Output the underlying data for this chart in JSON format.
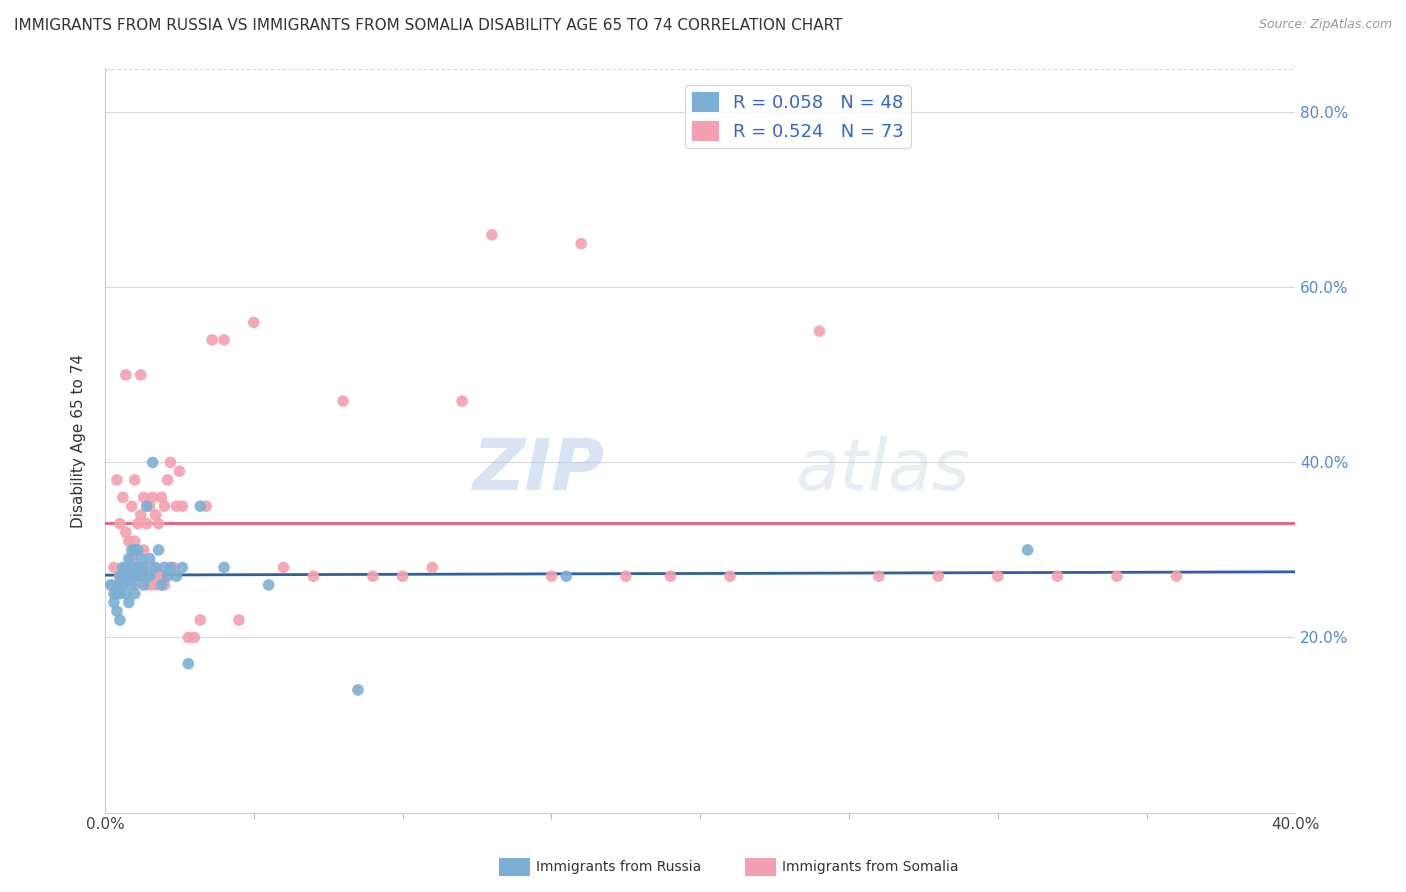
{
  "title": "IMMIGRANTS FROM RUSSIA VS IMMIGRANTS FROM SOMALIA DISABILITY AGE 65 TO 74 CORRELATION CHART",
  "source": "Source: ZipAtlas.com",
  "ylabel": "Disability Age 65 to 74",
  "ytick_labels": [
    "20.0%",
    "40.0%",
    "60.0%",
    "80.0%"
  ],
  "ytick_values": [
    0.2,
    0.4,
    0.6,
    0.8
  ],
  "xlim": [
    0.0,
    0.4
  ],
  "ylim": [
    0.0,
    0.85
  ],
  "legend_russia": "R = 0.058   N = 48",
  "legend_somalia": "R = 0.524   N = 73",
  "legend_label1": "Immigrants from Russia",
  "legend_label2": "Immigrants from Somalia",
  "russia_color": "#7BAFD4",
  "somalia_color": "#F4A0B0",
  "russia_line_color": "#3060A0",
  "somalia_line_color": "#E8607A",
  "watermark_text": "ZIP",
  "watermark_text2": "atlas",
  "background_color": "#ffffff",
  "grid_color": "#d8d8d8",
  "russia_scatter_x": [
    0.002,
    0.003,
    0.003,
    0.004,
    0.004,
    0.005,
    0.005,
    0.005,
    0.006,
    0.006,
    0.006,
    0.007,
    0.007,
    0.007,
    0.008,
    0.008,
    0.008,
    0.009,
    0.009,
    0.009,
    0.01,
    0.01,
    0.01,
    0.011,
    0.011,
    0.012,
    0.012,
    0.013,
    0.013,
    0.014,
    0.015,
    0.015,
    0.016,
    0.017,
    0.018,
    0.019,
    0.02,
    0.021,
    0.022,
    0.024,
    0.026,
    0.028,
    0.032,
    0.04,
    0.055,
    0.085,
    0.155,
    0.31
  ],
  "russia_scatter_y": [
    0.26,
    0.24,
    0.25,
    0.23,
    0.26,
    0.22,
    0.25,
    0.27,
    0.26,
    0.27,
    0.28,
    0.25,
    0.27,
    0.28,
    0.24,
    0.27,
    0.29,
    0.26,
    0.28,
    0.3,
    0.25,
    0.27,
    0.3,
    0.28,
    0.3,
    0.27,
    0.29,
    0.26,
    0.28,
    0.35,
    0.27,
    0.29,
    0.4,
    0.28,
    0.3,
    0.26,
    0.28,
    0.27,
    0.28,
    0.27,
    0.28,
    0.17,
    0.35,
    0.28,
    0.26,
    0.14,
    0.27,
    0.3
  ],
  "somalia_scatter_x": [
    0.002,
    0.003,
    0.004,
    0.004,
    0.005,
    0.005,
    0.006,
    0.006,
    0.007,
    0.007,
    0.007,
    0.008,
    0.008,
    0.009,
    0.009,
    0.01,
    0.01,
    0.01,
    0.011,
    0.011,
    0.012,
    0.012,
    0.012,
    0.013,
    0.013,
    0.014,
    0.014,
    0.015,
    0.015,
    0.016,
    0.016,
    0.017,
    0.017,
    0.018,
    0.018,
    0.019,
    0.019,
    0.02,
    0.02,
    0.021,
    0.022,
    0.023,
    0.024,
    0.025,
    0.026,
    0.028,
    0.03,
    0.032,
    0.034,
    0.036,
    0.04,
    0.045,
    0.05,
    0.06,
    0.07,
    0.08,
    0.09,
    0.1,
    0.11,
    0.12,
    0.13,
    0.15,
    0.16,
    0.175,
    0.19,
    0.21,
    0.24,
    0.26,
    0.28,
    0.3,
    0.32,
    0.34,
    0.36
  ],
  "somalia_scatter_y": [
    0.26,
    0.28,
    0.25,
    0.38,
    0.27,
    0.33,
    0.26,
    0.36,
    0.28,
    0.32,
    0.5,
    0.27,
    0.31,
    0.29,
    0.35,
    0.26,
    0.31,
    0.38,
    0.27,
    0.33,
    0.28,
    0.34,
    0.5,
    0.3,
    0.36,
    0.27,
    0.33,
    0.26,
    0.35,
    0.28,
    0.36,
    0.26,
    0.34,
    0.27,
    0.33,
    0.27,
    0.36,
    0.26,
    0.35,
    0.38,
    0.4,
    0.28,
    0.35,
    0.39,
    0.35,
    0.2,
    0.2,
    0.22,
    0.35,
    0.54,
    0.54,
    0.22,
    0.56,
    0.28,
    0.27,
    0.47,
    0.27,
    0.27,
    0.28,
    0.47,
    0.66,
    0.27,
    0.65,
    0.27,
    0.27,
    0.27,
    0.55,
    0.27,
    0.27,
    0.27,
    0.27,
    0.27,
    0.27
  ]
}
